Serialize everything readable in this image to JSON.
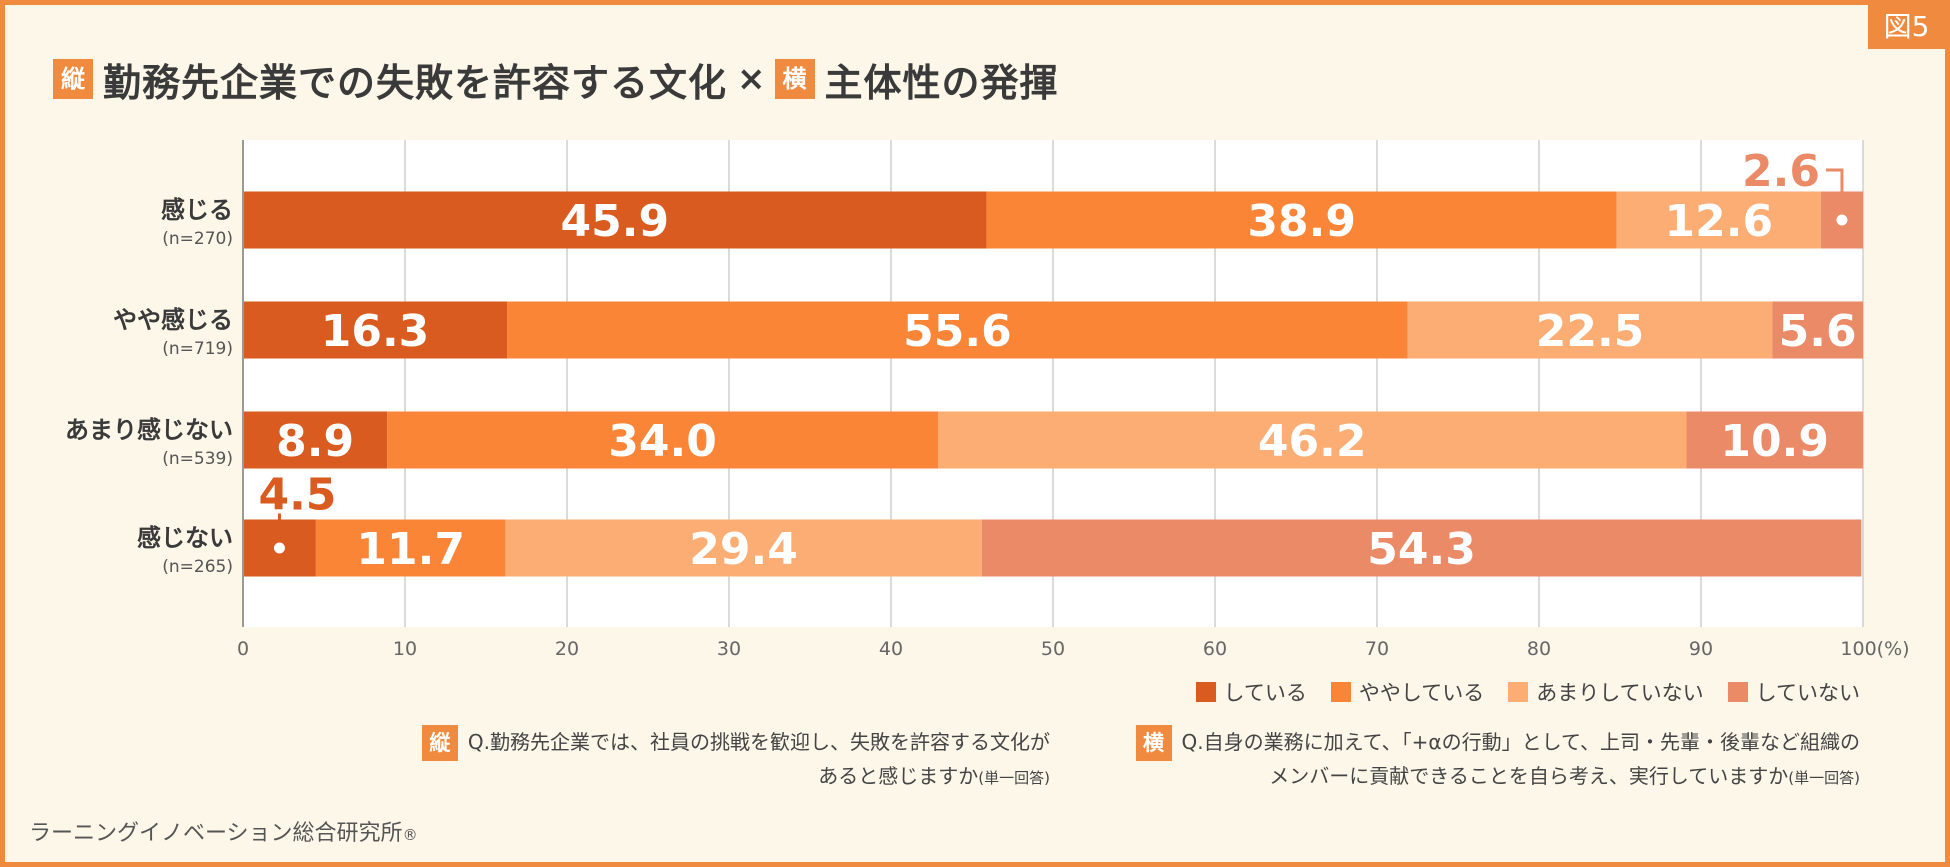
{
  "badge": "図5",
  "title": {
    "tag_v": "縦",
    "text_v": "勤務先企業での失敗を許容する文化",
    "times": "×",
    "tag_h": "横",
    "text_h": "主体性の発揮"
  },
  "colors": {
    "している": "#d95b1f",
    "ややしている": "#fa8537",
    "あまりしていない": "#fbad74",
    "していない": "#ea8a66"
  },
  "chart_data": {
    "type": "bar",
    "orientation": "horizontal",
    "stacked": true,
    "categories": [
      "感じる",
      "やや感じる",
      "あまり感じない",
      "感じない"
    ],
    "n_labels": [
      "(n=270)",
      "(n=719)",
      "(n=539)",
      "(n=265)"
    ],
    "series": [
      {
        "name": "している",
        "values": [
          45.9,
          16.3,
          8.9,
          4.5
        ]
      },
      {
        "name": "ややしている",
        "values": [
          38.9,
          55.6,
          34.0,
          11.7
        ]
      },
      {
        "name": "あまりしていない",
        "values": [
          12.6,
          22.5,
          46.2,
          29.4
        ]
      },
      {
        "name": "していない",
        "values": [
          2.6,
          5.6,
          10.9,
          54.3
        ]
      }
    ],
    "xlim": [
      0,
      100
    ],
    "xticks": [
      "0",
      "10",
      "20",
      "30",
      "40",
      "50",
      "60",
      "70",
      "80",
      "90",
      "100(%)"
    ],
    "grid": true,
    "legend_position": "bottom-right"
  },
  "questions": {
    "v_tag": "縦",
    "v_line1": "Q.勤務先企業では、社員の挑戦を歓迎し、失敗を許容する文化が",
    "v_line2": "あると感じますか",
    "v_note": "(単一回答)",
    "h_tag": "横",
    "h_line1": "Q.自身の業務に加えて、「+αの行動」として、上司・先輩・後輩など組織の",
    "h_line2": "メンバーに貢献できることを自ら考え、実行していますか",
    "h_note": "(単一回答)"
  },
  "credit": "ラーニングイノベーション総合研究所",
  "credit_mark": "®"
}
